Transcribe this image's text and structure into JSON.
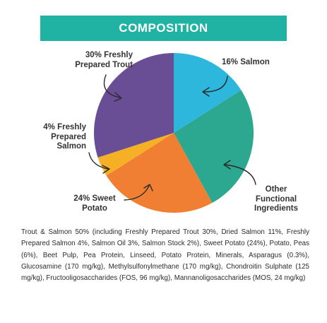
{
  "banner": {
    "title": "COMPOSITION",
    "color": "#20b2a3"
  },
  "chart_data": {
    "type": "pie",
    "title": "COMPOSITION",
    "slices": [
      {
        "label": "16% Salmon",
        "value": 16,
        "color": "#2eb7dd"
      },
      {
        "label": "Other Functional Ingredients",
        "value": 26,
        "color": "#2ba88f"
      },
      {
        "label": "24% Sweet Potato",
        "value": 24,
        "color": "#f07f33"
      },
      {
        "label": "4% Freshly Prepared Salmon",
        "value": 4,
        "color": "#f6b025"
      },
      {
        "label": "30% Freshly Prepared Trout",
        "value": 30,
        "color": "#6a4e95"
      }
    ]
  },
  "labels": {
    "trout": [
      "30% Freshly",
      "Prepared Trout"
    ],
    "salmon": [
      "16% Salmon"
    ],
    "fresh_salmon": [
      "4% Freshly",
      "Prepared",
      "Salmon"
    ],
    "sweet_potato": [
      "24% Sweet",
      "Potato"
    ],
    "other": [
      "Other",
      "Functional",
      "Ingredients"
    ]
  },
  "description": "Trout & Salmon 50% (including Freshly Prepared Trout 30%, Dried Salmon 11%, Freshly Prepared Salmon 4%, Salmon Oil 3%, Salmon Stock 2%), Sweet Potato (24%), Potato, Peas (6%), Beet Pulp, Pea Protein, Linseed, Potato Protein, Minerals, Asparagus (0.3%), Glucosamine (170 mg/kg), Methylsulfonylmethane (170 mg/kg), Chondroitin Sulphate (125 mg/kg), Fructooligosaccharides (FOS, 96 mg/kg), Mannanoligosaccharides (MOS, 24 mg/kg)"
}
